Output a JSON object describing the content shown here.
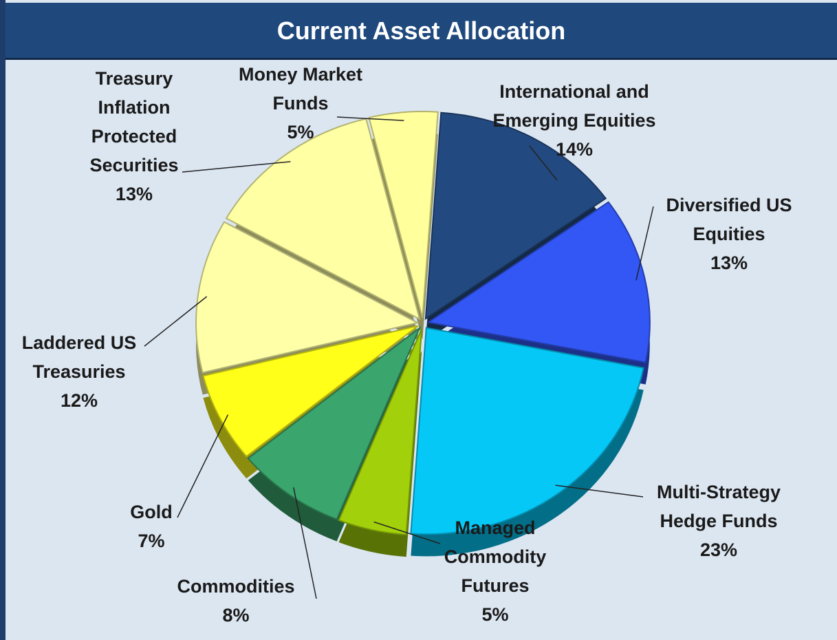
{
  "chart_data": {
    "type": "pie",
    "title": "Current Asset Allocation",
    "categories": [
      "International and Emerging Equities",
      "Diversified US Equities",
      "Multi-Strategy Hedge Funds",
      "Managed Commodity Futures",
      "Commodities",
      "Gold",
      "Laddered US Treasuries",
      "Treasury Inflation Protected Securities",
      "Money Market Funds"
    ],
    "values": [
      14,
      13,
      23,
      5,
      8,
      7,
      12,
      13,
      5
    ],
    "value_labels": [
      "14%",
      "13%",
      "23%",
      "5%",
      "8%",
      "7%",
      "12%",
      "13%",
      "5%"
    ],
    "colors": [
      "#234a80",
      "#3357f5",
      "#05c8f7",
      "#a2d00a",
      "#3aa56c",
      "#ffff1a",
      "#ffffa8",
      "#ffffa4",
      "#ffff9c"
    ]
  }
}
